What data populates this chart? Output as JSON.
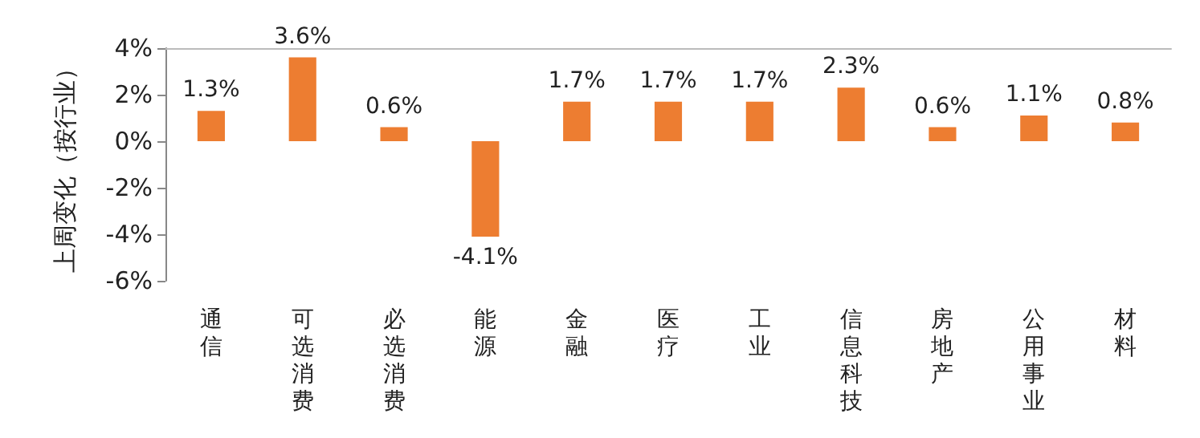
{
  "chart_data": {
    "type": "bar",
    "ylabel": "上周变化（按行业）",
    "categories": [
      "通信",
      "可选消费",
      "必选消费",
      "能源",
      "金融",
      "医疗",
      "工业",
      "信息科技",
      "房地产",
      "公用事业",
      "材料"
    ],
    "values": [
      1.3,
      3.6,
      0.6,
      -4.1,
      1.7,
      1.7,
      1.7,
      2.3,
      0.6,
      1.1,
      0.8
    ],
    "value_labels": [
      "1.3%",
      "3.6%",
      "0.6%",
      "-4.1%",
      "1.7%",
      "1.7%",
      "1.7%",
      "2.3%",
      "0.6%",
      "1.1%",
      "0.8%"
    ],
    "color": "#ed7d31",
    "ylim": [
      -6,
      4
    ],
    "yticks": [
      {
        "value": -6,
        "label": "-6%"
      },
      {
        "value": -4,
        "label": "-4%"
      },
      {
        "value": -2,
        "label": "-2%"
      },
      {
        "value": 0,
        "label": "0%"
      },
      {
        "value": 2,
        "label": "2%"
      },
      {
        "value": 4,
        "label": "4%"
      }
    ],
    "grid": false
  }
}
